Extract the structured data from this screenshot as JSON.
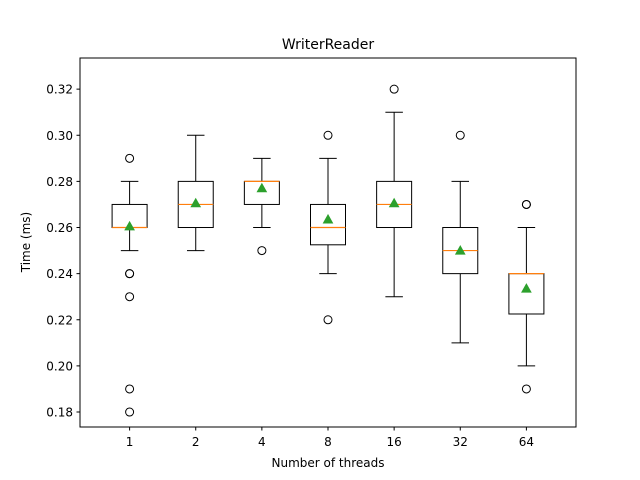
{
  "chart_data": {
    "type": "boxplot",
    "title": "WriterReader",
    "xlabel": "Number of threads",
    "ylabel": "Time (ms)",
    "categories": [
      "1",
      "2",
      "4",
      "8",
      "16",
      "32",
      "64"
    ],
    "ylim": [
      0.1735,
      0.3335
    ],
    "yticks": [
      0.18,
      0.2,
      0.22,
      0.24,
      0.26,
      0.28,
      0.3,
      0.32
    ],
    "ytick_labels": [
      "0.18",
      "0.20",
      "0.22",
      "0.24",
      "0.26",
      "0.28",
      "0.30",
      "0.32"
    ],
    "grid": false,
    "colors": {
      "box": "#000000",
      "median": "#ff7f0e",
      "mean": "#2ca02c"
    },
    "boxes": [
      {
        "category": "1",
        "whisker_low": 0.25,
        "q1": 0.26,
        "median": 0.26,
        "q3": 0.27,
        "whisker_high": 0.28,
        "mean": 0.2605,
        "outliers": [
          0.29,
          0.24,
          0.24,
          0.23,
          0.19,
          0.18
        ]
      },
      {
        "category": "2",
        "whisker_low": 0.25,
        "q1": 0.26,
        "median": 0.27,
        "q3": 0.28,
        "whisker_high": 0.3,
        "mean": 0.2705,
        "outliers": []
      },
      {
        "category": "4",
        "whisker_low": 0.26,
        "q1": 0.27,
        "median": 0.28,
        "q3": 0.28,
        "whisker_high": 0.29,
        "mean": 0.277,
        "outliers": [
          0.25
        ]
      },
      {
        "category": "8",
        "whisker_low": 0.24,
        "q1": 0.2525,
        "median": 0.26,
        "q3": 0.27,
        "whisker_high": 0.29,
        "mean": 0.2635,
        "outliers": [
          0.3,
          0.22
        ]
      },
      {
        "category": "16",
        "whisker_low": 0.23,
        "q1": 0.26,
        "median": 0.27,
        "q3": 0.28,
        "whisker_high": 0.31,
        "mean": 0.2705,
        "outliers": [
          0.32
        ]
      },
      {
        "category": "32",
        "whisker_low": 0.21,
        "q1": 0.24,
        "median": 0.25,
        "q3": 0.26,
        "whisker_high": 0.28,
        "mean": 0.25,
        "outliers": [
          0.3
        ]
      },
      {
        "category": "64",
        "whisker_low": 0.2,
        "q1": 0.2225,
        "median": 0.24,
        "q3": 0.24,
        "whisker_high": 0.26,
        "mean": 0.2335,
        "outliers": [
          0.27,
          0.27,
          0.19
        ]
      }
    ]
  }
}
